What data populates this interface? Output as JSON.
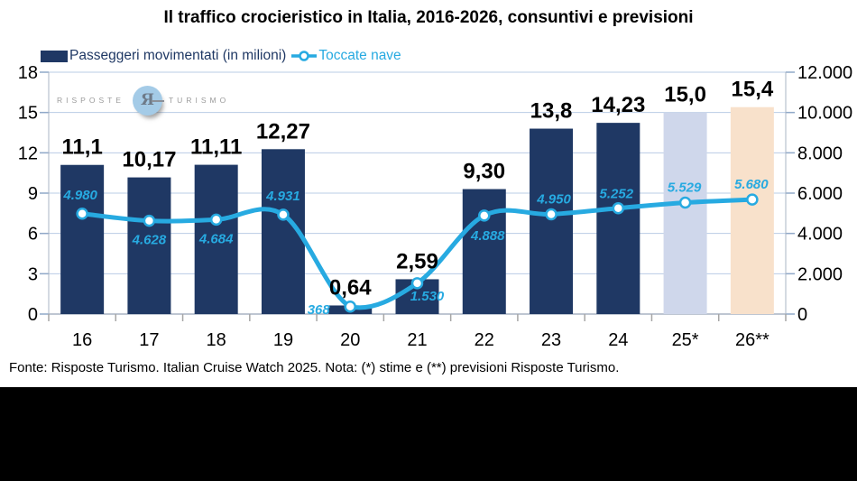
{
  "title": "Il traffico crocieristico in Italia, 2016-2026, consuntivi e previsioni",
  "legend": {
    "bar_label": "Passeggeri movimentati (in milioni)",
    "line_label": "Toccate nave"
  },
  "watermark": {
    "left_word": "RISPOSTE",
    "right_word": "TURISMO",
    "glyph": "Я"
  },
  "footer": "Fonte: Risposte Turismo. Italian Cruise Watch 2025. Nota: (*) stime e (**) previsioni Risposte Turismo.",
  "colors": {
    "bar_actual": "#1f3864",
    "bar_estimate": "#cfd7eb",
    "bar_forecast": "#f8e1cb",
    "line": "#27aae1",
    "grid": "#b9cce4",
    "axis": "#a9b4c4",
    "side_tick": "#8fa8c8",
    "bottom_tick": "#a6a6a6"
  },
  "chart_data": {
    "type": "combo-bar-line",
    "title": "Il traffico crocieristico in Italia, 2016-2026, consuntivi e previsioni",
    "categories": [
      "16",
      "17",
      "18",
      "19",
      "20",
      "21",
      "22",
      "23",
      "24",
      "25*",
      "26**"
    ],
    "series": [
      {
        "name": "Passeggeri movimentati (in milioni)",
        "type": "bar",
        "axis": "left",
        "values": [
          11.1,
          10.17,
          11.11,
          12.27,
          0.64,
          2.59,
          9.3,
          13.8,
          14.23,
          15.0,
          15.4
        ],
        "labels": [
          "11,1",
          "10,17",
          "11,11",
          "12,27",
          "0,64",
          "2,59",
          "9,30",
          "13,8",
          "14,23",
          "15,0",
          "15,4"
        ],
        "bar_styles": [
          "actual",
          "actual",
          "actual",
          "actual",
          "actual",
          "actual",
          "actual",
          "actual",
          "actual",
          "estimate",
          "forecast"
        ]
      },
      {
        "name": "Toccate nave",
        "type": "line",
        "axis": "right",
        "values": [
          4980,
          4628,
          4684,
          4931,
          368,
          1530,
          4888,
          4950,
          5252,
          5529,
          5680
        ],
        "labels": [
          "4.980",
          "4.628",
          "4.684",
          "4.931",
          "368",
          "1.530",
          "4.888",
          "4.950",
          "5.252",
          "5.529",
          "5.680"
        ],
        "label_offsets": [
          [
            -2,
            -16
          ],
          [
            0,
            26
          ],
          [
            0,
            26
          ],
          [
            0,
            -16
          ],
          [
            -35,
            8
          ],
          [
            11,
            19
          ],
          [
            4,
            27
          ],
          [
            3,
            -12
          ],
          [
            -2,
            -11
          ],
          [
            -1,
            -12
          ],
          [
            -1,
            -12
          ]
        ]
      }
    ],
    "left_axis": {
      "min": 0,
      "max": 18,
      "step": 3,
      "ticks": [
        "0",
        "3",
        "6",
        "9",
        "12",
        "15",
        "18"
      ]
    },
    "right_axis": {
      "min": 0,
      "max": 12000,
      "step": 2000,
      "ticks": [
        "0",
        "2.000",
        "4.000",
        "6.000",
        "8.000",
        "10.000",
        "12.000"
      ]
    },
    "grid": true,
    "legend_position": "top-left",
    "notes": "25* = stime (estimates), 26** = previsioni (forecasts)"
  }
}
